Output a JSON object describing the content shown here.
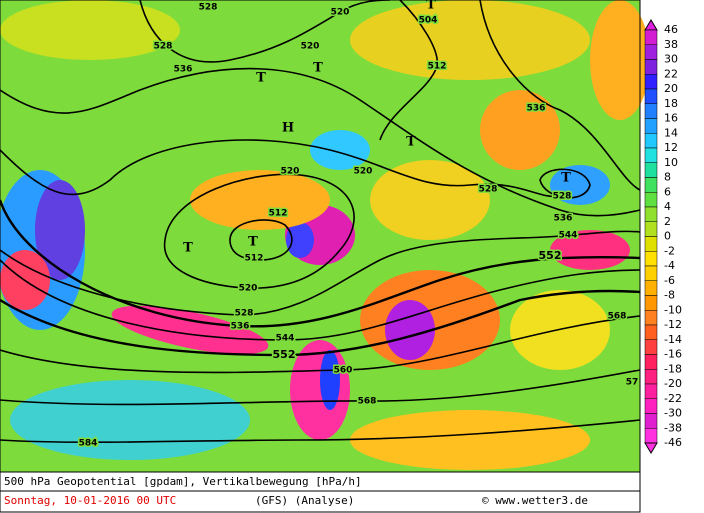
{
  "map": {
    "contour_labels": [
      "528",
      "520",
      "504",
      "520",
      "528",
      "536",
      "512",
      "536",
      "520",
      "520",
      "528",
      "528",
      "512",
      "536",
      "544",
      "552",
      "512",
      "520",
      "528",
      "536",
      "544",
      "552",
      "560",
      "568",
      "568",
      "584",
      "57"
    ],
    "pressure_systems": [
      "T",
      "T",
      "H",
      "T",
      "T",
      "T",
      "T",
      "T"
    ],
    "colorbar": {
      "labels": [
        "46",
        "38",
        "30",
        "22",
        "20",
        "18",
        "16",
        "14",
        "12",
        "10",
        "8",
        "6",
        "4",
        "2",
        "0",
        "-2",
        "-4",
        "-6",
        "-8",
        "-10",
        "-12",
        "-14",
        "-16",
        "-18",
        "-20",
        "-22",
        "-30",
        "-38",
        "-46"
      ]
    },
    "footer": {
      "line1": "500 hPa Geopotential [gpdam], Vertikalbewegung [hPa/h]",
      "date": "Sonntag, 10-01-2016  00 UTC",
      "model": "(GFS)  (Analyse)",
      "credit": "© www.wetter3.de"
    }
  }
}
